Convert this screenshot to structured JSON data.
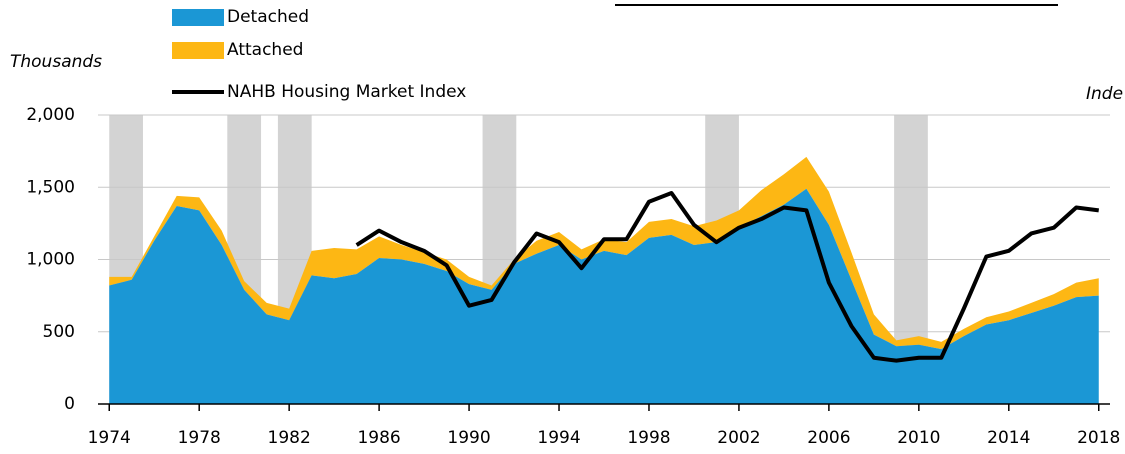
{
  "chart_data": {
    "type": "stacked_area_line",
    "y_label": "Thousands",
    "y2_label": "Inde",
    "x": [
      1974,
      1975,
      1976,
      1977,
      1978,
      1979,
      1980,
      1981,
      1982,
      1983,
      1984,
      1985,
      1986,
      1987,
      1988,
      1989,
      1990,
      1991,
      1992,
      1993,
      1994,
      1995,
      1996,
      1997,
      1998,
      1999,
      2000,
      2001,
      2002,
      2003,
      2004,
      2005,
      2006,
      2007,
      2008,
      2009,
      2010,
      2011,
      2012,
      2013,
      2014,
      2015,
      2016,
      2017,
      2018
    ],
    "series": [
      {
        "name": "Detached",
        "color": "#1b97d5",
        "values": [
          820,
          860,
          1130,
          1370,
          1340,
          1100,
          790,
          620,
          580,
          890,
          870,
          900,
          1010,
          1000,
          970,
          920,
          830,
          790,
          970,
          1040,
          1100,
          1000,
          1060,
          1030,
          1150,
          1170,
          1100,
          1120,
          1220,
          1300,
          1380,
          1490,
          1240,
          860,
          480,
          400,
          410,
          380,
          470,
          550,
          580,
          630,
          680,
          740,
          750
        ]
      },
      {
        "name": "Attached",
        "color": "#fdb714",
        "values": [
          60,
          20,
          30,
          70,
          90,
          100,
          60,
          80,
          80,
          170,
          210,
          170,
          150,
          100,
          80,
          80,
          50,
          30,
          30,
          90,
          90,
          70,
          80,
          90,
          110,
          110,
          130,
          150,
          120,
          180,
          210,
          220,
          230,
          190,
          140,
          40,
          60,
          50,
          50,
          50,
          60,
          70,
          80,
          100,
          120
        ]
      },
      {
        "name": "NAHB Housing Market Index",
        "color": "#000000",
        "axis": "y2",
        "values": [
          null,
          null,
          null,
          null,
          null,
          null,
          null,
          null,
          null,
          null,
          null,
          55,
          60,
          56,
          53,
          48,
          34,
          36,
          49,
          59,
          56,
          47,
          57,
          57,
          70,
          73,
          62,
          56,
          61,
          64,
          68,
          67,
          42,
          27,
          16,
          15,
          16,
          16,
          33,
          51,
          53,
          59,
          61,
          68,
          67
        ]
      }
    ],
    "recessions": [
      [
        1974,
        1975.5
      ],
      [
        1979.25,
        1980.75
      ],
      [
        1981.5,
        1983
      ],
      [
        1990.6,
        1992.1
      ],
      [
        2000.5,
        2002
      ],
      [
        2008.9,
        2010.4
      ]
    ],
    "recession_color": "#d3d3d3",
    "xlim": [
      1973.5,
      2018.5
    ],
    "xticks": [
      1974,
      1978,
      1982,
      1986,
      1990,
      1994,
      1998,
      2002,
      2006,
      2010,
      2014,
      2018
    ],
    "ylim": [
      0,
      2000
    ],
    "yticks": [
      0,
      500,
      {
        "value": 1000,
        "label": "1,000"
      },
      {
        "value": 1500,
        "label": "1,500"
      },
      {
        "value": 2000,
        "label": "2,000"
      }
    ],
    "y2lim": [
      0,
      100
    ],
    "grid": true
  }
}
